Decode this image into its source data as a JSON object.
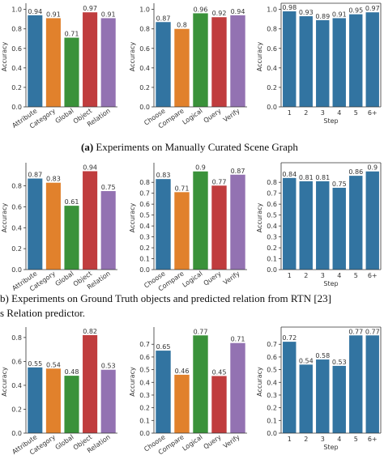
{
  "chart_data": [
    {
      "type": "bar",
      "categories": [
        "Attribute",
        "Category",
        "Global",
        "Object",
        "Relation"
      ],
      "values": [
        0.94,
        0.91,
        0.71,
        0.97,
        0.91
      ],
      "colors": [
        "#3274a1",
        "#e1812c",
        "#3a923a",
        "#c03d3e",
        "#9372b2"
      ],
      "ylabel": "Accuracy",
      "ylim": [
        0,
        1.03
      ],
      "yticks": [
        {
          "value": 0,
          "label": "0.0"
        },
        0.2,
        0.4,
        0.6,
        0.8,
        {
          "value": 1,
          "label": "1.0"
        }
      ],
      "frame": "left-bottom"
    },
    {
      "type": "bar",
      "categories": [
        "Choose",
        "Compare",
        "Logical",
        "Query",
        "Verify"
      ],
      "values": [
        0.87,
        0.8,
        0.96,
        0.92,
        0.94
      ],
      "colors": [
        "#3274a1",
        "#e1812c",
        "#3a923a",
        "#c03d3e",
        "#9372b2"
      ],
      "ylabel": "Accuracy",
      "ylim": [
        0,
        1.03
      ],
      "yticks": [
        {
          "value": 0,
          "label": "0.0"
        },
        0.2,
        0.4,
        0.6,
        0.8,
        {
          "value": 1,
          "label": "1.0"
        }
      ],
      "frame": "left-bottom"
    },
    {
      "type": "bar",
      "categories": [
        "1",
        "2",
        "3",
        "4",
        "5",
        "6+"
      ],
      "values": [
        0.98,
        0.93,
        0.89,
        0.91,
        0.95,
        0.97
      ],
      "color": "#3274a1",
      "ylabel": "Accuracy",
      "xlabel": "Step",
      "ylim": [
        0,
        1.03
      ],
      "yticks": [
        {
          "value": 0,
          "label": "0.0"
        },
        0.2,
        0.4,
        0.6,
        0.8,
        {
          "value": 1,
          "label": "1.0"
        }
      ],
      "frame": "box"
    },
    {
      "type": "bar",
      "categories": [
        "Attribute",
        "Category",
        "Global",
        "Object",
        "Relation"
      ],
      "values": [
        0.87,
        0.83,
        0.61,
        0.94,
        0.75
      ],
      "colors": [
        "#3274a1",
        "#e1812c",
        "#3a923a",
        "#c03d3e",
        "#9372b2"
      ],
      "ylabel": "Accuracy",
      "ylim": [
        0,
        0.99
      ],
      "yticks": [
        {
          "value": 0,
          "label": "0.0"
        },
        0.2,
        0.4,
        0.6,
        0.8
      ],
      "frame": "left-bottom"
    },
    {
      "type": "bar",
      "categories": [
        "Choose",
        "Compare",
        "Logical",
        "Query",
        "Verify"
      ],
      "values": [
        0.83,
        0.71,
        0.9,
        0.77,
        0.87
      ],
      "colors": [
        "#3274a1",
        "#e1812c",
        "#3a923a",
        "#c03d3e",
        "#9372b2"
      ],
      "ylabel": "Accuracy",
      "ylim": [
        0,
        0.95
      ],
      "yticks": [
        {
          "value": 0,
          "label": "0.0"
        },
        0.1,
        0.2,
        0.3,
        0.4,
        0.5,
        0.6,
        0.7,
        0.8
      ],
      "frame": "left-bottom"
    },
    {
      "type": "bar",
      "categories": [
        "1",
        "2",
        "3",
        "4",
        "5",
        "6+"
      ],
      "values": [
        0.84,
        0.81,
        0.81,
        0.75,
        0.86,
        0.9
      ],
      "color": "#3274a1",
      "ylabel": "Accuracy",
      "xlabel": "Step",
      "ylim": [
        0,
        0.95
      ],
      "yticks": [
        {
          "value": 0,
          "label": "0.0"
        },
        0.1,
        0.2,
        0.3,
        0.4,
        0.5,
        0.6,
        0.7,
        0.8
      ],
      "frame": "box"
    },
    {
      "type": "bar",
      "categories": [
        "Attribute",
        "Category",
        "Global",
        "Object",
        "Relation"
      ],
      "values": [
        0.55,
        0.54,
        0.48,
        0.82,
        0.53
      ],
      "colors": [
        "#3274a1",
        "#e1812c",
        "#3a923a",
        "#c03d3e",
        "#9372b2"
      ],
      "ylabel": "Accuracy",
      "ylim": [
        0,
        0.86
      ],
      "yticks": [
        {
          "value": 0,
          "label": "0.0"
        },
        0.2,
        0.4,
        0.6,
        0.8
      ],
      "frame": "left-bottom"
    },
    {
      "type": "bar",
      "categories": [
        "Choose",
        "Compare",
        "Logical",
        "Query",
        "Verify"
      ],
      "values": [
        0.65,
        0.46,
        0.77,
        0.45,
        0.71
      ],
      "colors": [
        "#3274a1",
        "#e1812c",
        "#3a923a",
        "#c03d3e",
        "#9372b2"
      ],
      "ylabel": "Accuracy",
      "ylim": [
        0,
        0.81
      ],
      "yticks": [
        {
          "value": 0,
          "label": "0.0"
        },
        0.1,
        0.2,
        0.3,
        0.4,
        0.5,
        0.6,
        0.7
      ],
      "frame": "left-bottom"
    },
    {
      "type": "bar",
      "categories": [
        "1",
        "2",
        "3",
        "4",
        "5",
        "6+"
      ],
      "values": [
        0.72,
        0.54,
        0.58,
        0.53,
        0.77,
        0.77
      ],
      "color": "#3274a1",
      "ylabel": "Accuracy",
      "xlabel": "Step",
      "ylim": [
        0,
        0.81
      ],
      "yticks": [
        {
          "value": 0,
          "label": "0.0"
        },
        0.1,
        0.2,
        0.3,
        0.4,
        0.5,
        0.6,
        0.7
      ],
      "frame": "box"
    }
  ],
  "captions": [
    {
      "label": "(a)",
      "text": "Experiments on Manually Curated Scene Graph"
    },
    {
      "text": "b) Experiments on Ground Truth objects and predicted relation from RTN [23]"
    },
    {
      "text": "s Relation predictor."
    }
  ]
}
